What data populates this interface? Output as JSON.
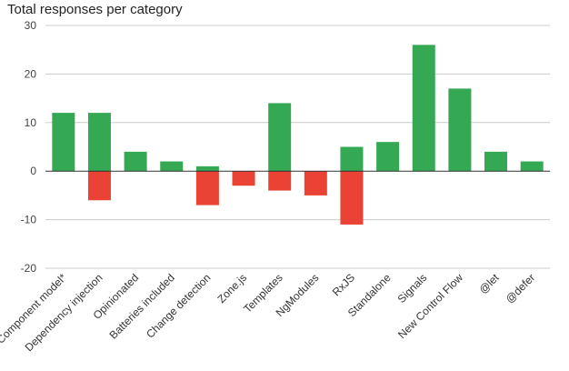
{
  "chart_data": {
    "type": "bar",
    "title": "Total responses per category",
    "xlabel": "",
    "ylabel": "",
    "ylim": [
      -20,
      30
    ],
    "yticks": [
      30,
      20,
      10,
      0,
      -10,
      -20
    ],
    "grid": true,
    "categories": [
      "Component model*",
      "Dependency injection",
      "Opinionated",
      "Batteries included",
      "Change detection",
      "Zone.js",
      "Templates",
      "NgModules",
      "RxJS",
      "Standalone",
      "Signals",
      "New Control Flow",
      "@let",
      "@defer"
    ],
    "series": [
      {
        "values": [
          12,
          12,
          4,
          2,
          1,
          0,
          14,
          0,
          5,
          6,
          26,
          17,
          4,
          2
        ]
      },
      {
        "values": [
          0,
          -6,
          0,
          0,
          -7,
          -3,
          -4,
          -5,
          -11,
          0,
          0,
          0,
          0,
          0
        ]
      }
    ],
    "colors": {
      "positive": "#34a853",
      "negative": "#ea4335",
      "grid": "#cccccc",
      "zero_line": "#333333"
    }
  }
}
